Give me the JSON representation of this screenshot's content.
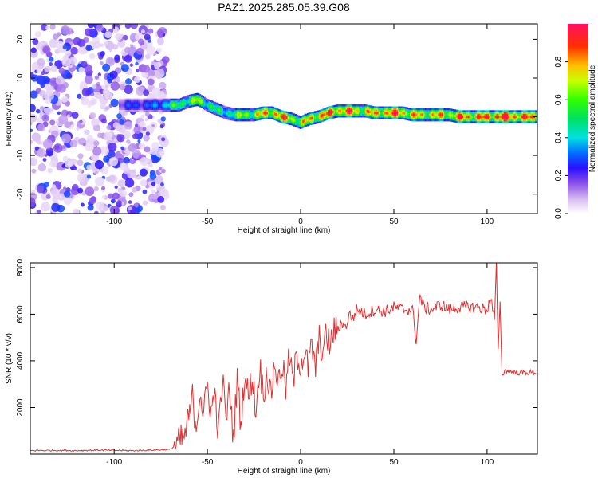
{
  "page_title": "PAZ1.2025.285.05.39.G08",
  "colors": {
    "snr_line": "#e03030",
    "axis": "#000000"
  },
  "chart_data": [
    {
      "type": "heatmap",
      "xlabel": "Height of straight line (km)",
      "ylabel": "Frequency (Hz)",
      "xlim": [
        -145,
        127
      ],
      "ylim": [
        -25,
        24
      ],
      "x_ticks": [
        -100,
        -50,
        0,
        50,
        100
      ],
      "x_tick_labels": [
        "-100",
        "-50",
        "0",
        "50",
        "100"
      ],
      "y_ticks": [
        -20,
        -10,
        0,
        10,
        20
      ],
      "y_tick_labels": [
        "-20",
        "-10",
        "0",
        "10",
        "20"
      ],
      "colorbar": {
        "label": "Normalized spectral amplitude",
        "range": [
          0,
          1
        ],
        "ticks": [
          0.0,
          0.2,
          0.4,
          0.6,
          0.8
        ],
        "tick_labels": [
          "0.0",
          "0.2",
          "0.4",
          "0.6",
          "0.8"
        ]
      },
      "noise_region_x": [
        -145,
        -72
      ],
      "ridge": {
        "x": [
          -97,
          -90,
          -85,
          -80,
          -75,
          -70,
          -65,
          -60,
          -55,
          -50,
          -45,
          -40,
          -35,
          -30,
          -25,
          -20,
          -15,
          -10,
          -5,
          0,
          5,
          10,
          15,
          20,
          25,
          30,
          35,
          40,
          45,
          50,
          55,
          60,
          65,
          70,
          75,
          80,
          85,
          90,
          95,
          100,
          105,
          110,
          115,
          120,
          127
        ],
        "y": [
          3,
          3,
          3,
          3,
          3,
          3,
          3,
          4,
          4.5,
          3,
          2,
          1,
          0.5,
          0.5,
          0.5,
          1,
          1,
          0,
          -0.5,
          -1.5,
          -0.5,
          0,
          1,
          1.5,
          1.5,
          1.5,
          1.5,
          1,
          1,
          1,
          1,
          0.5,
          0.5,
          0.5,
          0.5,
          0.5,
          0,
          0,
          0,
          0,
          0,
          0,
          0,
          0,
          0
        ],
        "amplitude": [
          0.2,
          0.3,
          0.3,
          0.3,
          0.4,
          0.5,
          0.6,
          0.6,
          0.7,
          0.6,
          0.5,
          0.5,
          0.6,
          0.7,
          0.7,
          0.8,
          0.9,
          0.9,
          0.8,
          0.7,
          0.8,
          0.9,
          0.9,
          0.9,
          0.9,
          0.8,
          0.8,
          0.8,
          0.9,
          0.9,
          0.9,
          0.8,
          0.8,
          0.8,
          0.8,
          0.8,
          0.9,
          0.9,
          0.9,
          0.9,
          1.0,
          1.0,
          1.0,
          0.9,
          0.9
        ]
      }
    },
    {
      "type": "line",
      "xlabel": "Height of straight line (km)",
      "ylabel": "SNR (10 * v/v)",
      "xlim": [
        -145,
        127
      ],
      "ylim": [
        0,
        8200
      ],
      "x_ticks": [
        -100,
        -50,
        0,
        50,
        100
      ],
      "x_tick_labels": [
        "-100",
        "-50",
        "0",
        "50",
        "100"
      ],
      "y_ticks": [
        2000,
        4000,
        6000,
        8000
      ],
      "y_tick_labels": [
        "2000",
        "4000",
        "6000",
        "8000"
      ],
      "series": [
        {
          "x": [
            -145,
            -130,
            -120,
            -110,
            -100,
            -90,
            -80,
            -70,
            -65,
            -62,
            -60,
            -58,
            -56,
            -54,
            -52,
            -50,
            -48,
            -46,
            -44,
            -42,
            -40,
            -38,
            -36,
            -34,
            -32,
            -30,
            -28,
            -26,
            -24,
            -22,
            -20,
            -18,
            -16,
            -14,
            -12,
            -10,
            -8,
            -6,
            -4,
            -2,
            0,
            2,
            4,
            6,
            8,
            10,
            12,
            14,
            16,
            18,
            20,
            22,
            24,
            26,
            28,
            30,
            35,
            40,
            45,
            50,
            55,
            60,
            62,
            64,
            66,
            70,
            75,
            80,
            85,
            90,
            95,
            100,
            102,
            104,
            105,
            106,
            107,
            108,
            110,
            115,
            120,
            127
          ],
          "y": [
            150,
            160,
            150,
            170,
            160,
            150,
            170,
            200,
            500,
            800,
            1500,
            2400,
            1200,
            2800,
            1600,
            3000,
            1800,
            2600,
            900,
            3200,
            1500,
            2800,
            600,
            3300,
            1200,
            3500,
            2400,
            3400,
            1800,
            3800,
            2600,
            3600,
            2400,
            4000,
            3000,
            3900,
            2800,
            4200,
            3000,
            4300,
            3900,
            4400,
            3700,
            4600,
            3700,
            4900,
            4400,
            5100,
            4600,
            5400,
            5300,
            5700,
            5400,
            6000,
            5800,
            6200,
            6000,
            6200,
            6100,
            6300,
            6200,
            6200,
            4900,
            6800,
            6300,
            6200,
            6400,
            6200,
            6300,
            6300,
            6300,
            6200,
            6700,
            5700,
            8200,
            4400,
            6600,
            3400,
            3600,
            3500,
            3500,
            3500
          ]
        }
      ]
    }
  ]
}
